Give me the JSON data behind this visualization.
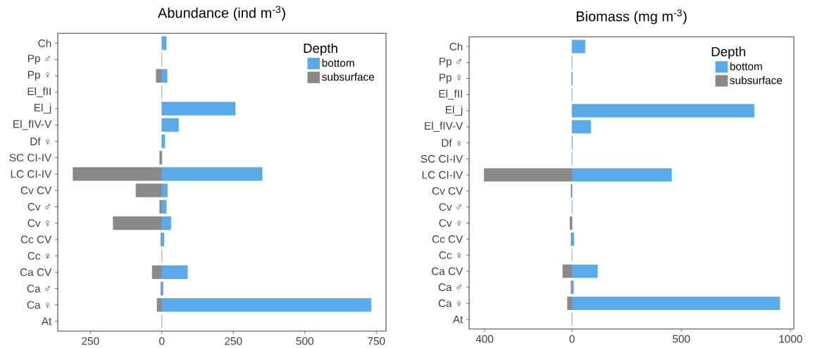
{
  "chart_data": [
    {
      "type": "bar",
      "orientation": "horizontal",
      "title": "Abundance (ind m$^{-3}$)",
      "categories": [
        "Ch",
        "Pp ♂",
        "Pp ♀",
        "El_fII",
        "El_j",
        "El_fIV-V",
        "Df ♀",
        "SC CI-IV",
        "LC CI-IV",
        "Cv CV",
        "Cv ♂",
        "Cv ♀",
        "Cc CV",
        "Cc ♀",
        "Ca CV",
        "Ca ♂",
        "Ca ♀",
        "At"
      ],
      "series": [
        {
          "name": "bottom",
          "color": "#5aaaeb",
          "values": [
            16,
            0,
            19,
            0,
            257,
            59,
            11,
            0,
            351,
            20,
            16,
            32,
            8,
            0,
            90,
            5,
            732,
            0
          ]
        },
        {
          "name": "subsurface",
          "color": "#8a8989",
          "values": [
            0,
            0,
            -20,
            0,
            0,
            0,
            0,
            -8,
            -311,
            -91,
            -8,
            -171,
            -4,
            0,
            -34,
            -4,
            -17,
            0
          ]
        }
      ],
      "xlim": [
        -364,
        784
      ],
      "xticks": [
        {
          "value": -250,
          "label": "250"
        },
        0,
        250,
        500,
        750
      ],
      "legend": "top right",
      "legend_title": "Depth"
    },
    {
      "type": "bar",
      "orientation": "horizontal",
      "title": "Biomass (mg m$^{-3}$)",
      "categories": [
        "Ch",
        "Pp ♂",
        "Pp ♀",
        "El_fII",
        "El_j",
        "El_fIV-V",
        "Df ♀",
        "SC CI-IV",
        "LC CI-IV",
        "Cv CV",
        "Cv ♂",
        "Cv ♀",
        "Cc CV",
        "Cc ♀",
        "Ca CV",
        "Ca ♂",
        "Ca ♀",
        "At"
      ],
      "series": [
        {
          "name": "bottom",
          "color": "#5aaaeb",
          "values": [
            60,
            0,
            2,
            0,
            834,
            86,
            2,
            0,
            456,
            0,
            1,
            0,
            9,
            0,
            117,
            7,
            951,
            0
          ]
        },
        {
          "name": "subsurface",
          "color": "#8a8989",
          "values": [
            0,
            0,
            -2,
            0,
            0,
            0,
            0,
            0,
            -403,
            -5,
            0,
            -10,
            -5,
            0,
            -43,
            -5,
            -22,
            0
          ]
        }
      ],
      "xlim": [
        -471,
        1015
      ],
      "xticks": [
        {
          "value": -400,
          "label": "400"
        },
        0,
        500,
        1000
      ],
      "legend": "top right",
      "legend_title": "Depth"
    }
  ]
}
